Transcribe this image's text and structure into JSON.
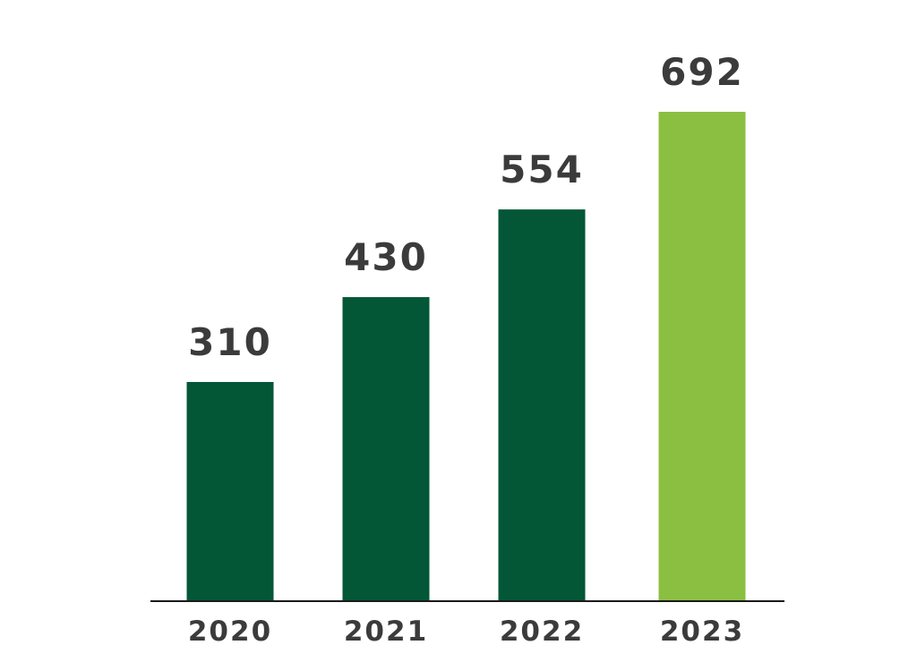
{
  "chart_data": {
    "type": "bar",
    "categories": [
      "2020",
      "2021",
      "2022",
      "2023"
    ],
    "values": [
      310,
      430,
      554,
      692
    ],
    "data_labels": [
      "310",
      "430",
      "554",
      "692"
    ],
    "title": "",
    "xlabel": "",
    "ylabel": "",
    "ylim": [
      0,
      692
    ],
    "grid": false,
    "legend": "none",
    "colors": {
      "bar": "#035737",
      "highlight_bar": "#8bbf41",
      "axis": "#1a1a1a",
      "text": "#3b3b3b"
    },
    "highlight_category": "2023"
  }
}
